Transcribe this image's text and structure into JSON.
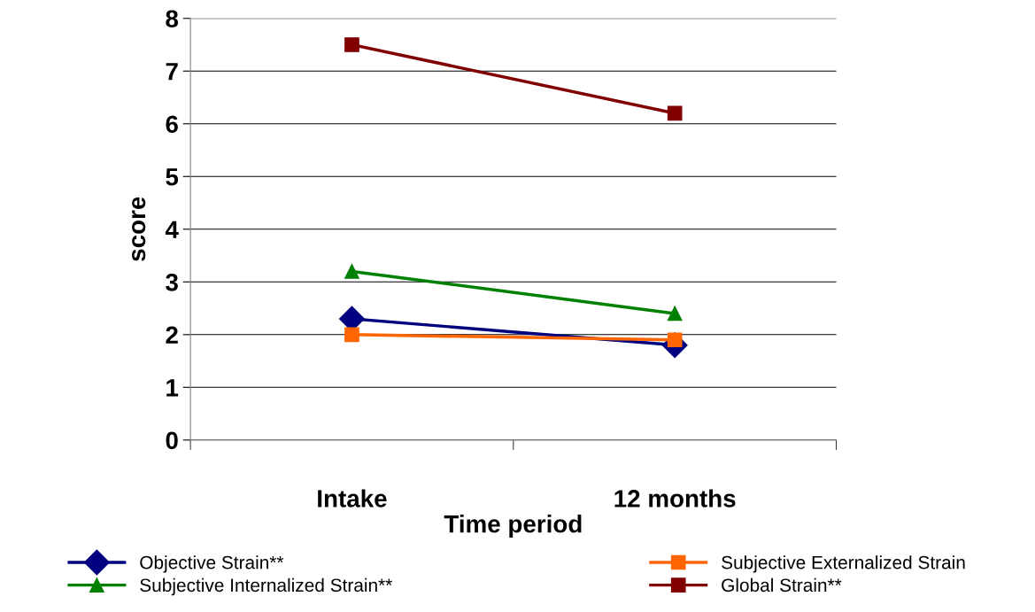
{
  "chart_data": {
    "type": "line",
    "xlabel": "Time period",
    "ylabel": "score",
    "categories": [
      "Intake",
      "12 months"
    ],
    "series": [
      {
        "name": "Objective Strain**",
        "color": "#000080",
        "marker": "diamond",
        "values": [
          2.3,
          1.8
        ]
      },
      {
        "name": "Subjective Internalized Strain**",
        "color": "#008000",
        "marker": "triangle",
        "values": [
          3.2,
          2.4
        ]
      },
      {
        "name": "Subjective Externalized Strain",
        "color": "#ff6600",
        "marker": "square",
        "values": [
          2.0,
          1.9
        ]
      },
      {
        "name": "Global Strain**",
        "color": "#800000",
        "marker": "square",
        "values": [
          7.5,
          6.2
        ]
      }
    ],
    "ylim": [
      0,
      8
    ],
    "yticks": [
      0,
      1,
      2,
      3,
      4,
      5,
      6,
      7,
      8
    ],
    "grid": "y",
    "legend": "bottom",
    "line_style": "solid"
  }
}
